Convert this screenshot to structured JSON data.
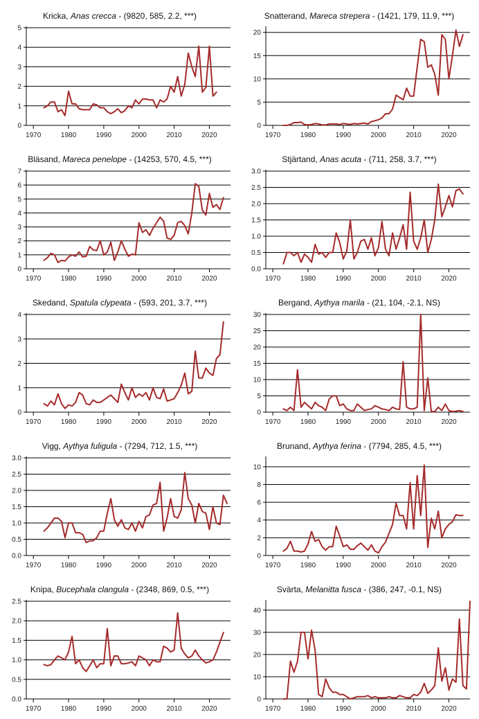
{
  "chart_data": [
    {
      "type": "line",
      "common_name": "Kricka",
      "latin_name": "Anas crecca",
      "stats": " - (9820, 585, 2.2, ***)",
      "x_start": 1973,
      "ylim": [
        0,
        5
      ],
      "yticks": [
        0,
        1,
        2,
        3,
        4,
        5
      ],
      "xticks": [
        1970,
        1980,
        1990,
        2000,
        2010,
        2020
      ],
      "xlim": [
        1968,
        2026
      ],
      "series": [
        {
          "values": [
            0.9,
            1.0,
            1.2,
            1.2,
            0.7,
            0.8,
            0.5,
            1.75,
            1.1,
            1.1,
            0.85,
            0.8,
            0.8,
            0.8,
            1.1,
            1.05,
            0.9,
            0.9,
            0.7,
            0.6,
            0.7,
            0.85,
            0.65,
            0.75,
            1.0,
            0.9,
            1.3,
            1.1,
            1.35,
            1.35,
            1.3,
            1.3,
            0.9,
            1.3,
            1.2,
            1.35,
            2.0,
            1.7,
            2.5,
            1.5,
            2.1,
            3.7,
            3.0,
            2.5,
            4.05,
            1.7,
            1.95,
            4.05,
            1.5,
            1.7
          ]
        }
      ]
    },
    {
      "type": "line",
      "common_name": "Snatterand",
      "latin_name": "Mareca strepera",
      "stats": " - (1421, 179, 11.9, ***)",
      "x_start": 1973,
      "ylim": [
        0,
        21
      ],
      "yticks": [
        0,
        5,
        10,
        15,
        20
      ],
      "xticks": [
        1970,
        1980,
        1990,
        2000,
        2010,
        2020
      ],
      "xlim": [
        1968,
        2026
      ],
      "series": [
        {
          "values": [
            0,
            0,
            0.2,
            0.6,
            0.6,
            0.7,
            0.2,
            0.1,
            0.2,
            0.4,
            0.3,
            0.1,
            0.1,
            0.3,
            0.3,
            0.3,
            0.2,
            0.4,
            0.3,
            0.2,
            0.4,
            0.3,
            0.4,
            0.5,
            0.3,
            0.8,
            1.0,
            1.2,
            1.6,
            2.5,
            2.5,
            3.5,
            6.5,
            6.0,
            5.5,
            8.0,
            6.3,
            6.3,
            12.5,
            18.5,
            18.0,
            12.5,
            13.0,
            11.0,
            6.5,
            19.5,
            18.5,
            10.0,
            15.0,
            20.5,
            17.0,
            19.5
          ]
        }
      ]
    },
    {
      "type": "line",
      "common_name": "Bläsand",
      "latin_name": "Mareca penelope",
      "stats": " - (14253, 570, 4.5, ***)",
      "x_start": 1973,
      "ylim": [
        0,
        7
      ],
      "yticks": [
        0,
        1,
        2,
        3,
        4,
        5,
        6,
        7
      ],
      "xticks": [
        1970,
        1980,
        1990,
        2000,
        2010,
        2020
      ],
      "xlim": [
        1968,
        2026
      ],
      "series": [
        {
          "values": [
            0.6,
            0.8,
            1.1,
            1.0,
            0.45,
            0.6,
            0.55,
            0.85,
            1.0,
            0.9,
            1.2,
            0.85,
            0.9,
            1.6,
            1.35,
            1.3,
            2.0,
            1.0,
            1.2,
            1.9,
            0.6,
            1.2,
            2.0,
            1.4,
            0.9,
            1.05,
            1.0,
            3.3,
            2.6,
            2.8,
            2.4,
            2.9,
            3.3,
            3.7,
            3.4,
            2.2,
            2.1,
            2.4,
            3.3,
            3.4,
            3.1,
            2.5,
            4.0,
            6.1,
            5.9,
            4.2,
            3.85,
            5.4,
            4.4,
            4.6,
            4.25,
            5.1
          ]
        }
      ]
    },
    {
      "type": "line",
      "common_name": "Stjärtand",
      "latin_name": "Anas acuta",
      "stats": " - (711, 258, 3.7, ***)",
      "x_start": 1973,
      "ylim": [
        0,
        3.0
      ],
      "yticks": [
        0,
        0.5,
        1.0,
        1.5,
        2.0,
        2.5,
        3.0
      ],
      "xticks": [
        1970,
        1980,
        1990,
        2000,
        2010,
        2020
      ],
      "xlim": [
        1968,
        2026
      ],
      "series": [
        {
          "values": [
            0.15,
            0.5,
            0.5,
            0.4,
            0.5,
            0.2,
            0.45,
            0.35,
            0.2,
            0.75,
            0.45,
            0.5,
            0.35,
            0.5,
            0.5,
            1.1,
            0.8,
            0.3,
            0.55,
            1.5,
            0.3,
            0.5,
            0.85,
            0.9,
            0.6,
            0.95,
            0.4,
            0.65,
            1.45,
            0.6,
            0.4,
            1.1,
            0.6,
            0.95,
            1.35,
            0.6,
            2.35,
            0.85,
            0.6,
            0.95,
            1.5,
            0.5,
            0.9,
            1.5,
            2.6,
            1.6,
            1.9,
            2.25,
            1.9,
            2.4,
            2.45,
            2.3
          ]
        }
      ]
    },
    {
      "type": "line",
      "common_name": "Skedand",
      "latin_name": "Spatula clypeata",
      "stats": " - (593, 201, 3.7, ***)",
      "x_start": 1973,
      "ylim": [
        0,
        4
      ],
      "yticks": [
        0,
        1,
        2,
        3,
        4
      ],
      "xticks": [
        1970,
        1980,
        1990,
        2000,
        2010,
        2020
      ],
      "xlim": [
        1968,
        2026
      ],
      "series": [
        {
          "values": [
            0.35,
            0.25,
            0.45,
            0.3,
            0.75,
            0.35,
            0.15,
            0.3,
            0.25,
            0.4,
            0.8,
            0.7,
            0.35,
            0.3,
            0.5,
            0.4,
            0.4,
            0.5,
            0.6,
            0.7,
            0.55,
            0.4,
            1.15,
            0.8,
            0.5,
            1.0,
            0.6,
            0.75,
            0.65,
            0.8,
            0.5,
            1.0,
            0.6,
            0.55,
            0.95,
            0.45,
            0.5,
            0.55,
            0.8,
            1.1,
            1.6,
            0.75,
            0.85,
            2.5,
            1.4,
            1.4,
            1.8,
            1.6,
            1.5,
            2.2,
            2.35,
            3.7
          ]
        }
      ]
    },
    {
      "type": "line",
      "common_name": "Bergand",
      "latin_name": "Aythya marila",
      "stats": " - (21, 104, -2.1, NS)",
      "x_start": 1973,
      "ylim": [
        0,
        30
      ],
      "yticks": [
        0,
        5,
        10,
        15,
        20,
        25,
        30
      ],
      "xticks": [
        1970,
        1980,
        1990,
        2000,
        2010,
        2020
      ],
      "xlim": [
        1968,
        2026
      ],
      "series": [
        {
          "values": [
            1.0,
            0.5,
            1.5,
            0.5,
            13.0,
            1.5,
            3.0,
            2.0,
            1.0,
            3.0,
            2.0,
            1.5,
            0.5,
            4.0,
            5.0,
            5.0,
            2.0,
            2.5,
            1.0,
            0.5,
            0.5,
            2.5,
            1.5,
            0.5,
            0.8,
            1.0,
            2.0,
            1.5,
            1.0,
            0.8,
            0.5,
            1.5,
            1.0,
            0.8,
            15.5,
            1.5,
            1.0,
            1.0,
            1.5,
            30.0,
            0.5,
            10.5,
            0.2,
            0.2,
            1.5,
            0.5,
            2.5,
            0.5,
            0.2,
            0.3,
            0.5,
            0.2
          ]
        }
      ]
    },
    {
      "type": "line",
      "common_name": "Vigg",
      "latin_name": "Aythya fuligula",
      "stats": " - (7294, 712, 1.5, ***)",
      "x_start": 1973,
      "ylim": [
        0,
        3.0
      ],
      "yticks": [
        0,
        0.5,
        1.0,
        1.5,
        2.0,
        2.5,
        3.0
      ],
      "xticks": [
        1970,
        1980,
        1990,
        2000,
        2010,
        2020
      ],
      "xlim": [
        1968,
        2026
      ],
      "series": [
        {
          "values": [
            0.75,
            0.85,
            1.0,
            1.15,
            1.15,
            1.05,
            0.55,
            1.0,
            1.0,
            0.7,
            0.7,
            0.65,
            0.4,
            0.45,
            0.45,
            0.55,
            0.75,
            0.75,
            1.3,
            1.75,
            1.1,
            0.9,
            1.1,
            0.85,
            0.8,
            1.0,
            0.75,
            1.05,
            0.85,
            1.2,
            1.25,
            1.55,
            1.6,
            2.25,
            0.75,
            1.15,
            1.75,
            1.2,
            1.15,
            1.4,
            2.55,
            1.75,
            1.55,
            1.0,
            1.6,
            1.35,
            1.3,
            0.8,
            1.5,
            1.0,
            0.95,
            1.85,
            1.6
          ]
        }
      ]
    },
    {
      "type": "line",
      "common_name": "Brunand",
      "latin_name": "Aythya ferina",
      "stats": " - (7794, 285, 4.5, ***)",
      "x_start": 1973,
      "ylim": [
        0,
        11
      ],
      "yticks": [
        0,
        2,
        4,
        6,
        8,
        10
      ],
      "xticks": [
        1970,
        1980,
        1990,
        2000,
        2010,
        2020
      ],
      "xlim": [
        1968,
        2026
      ],
      "series": [
        {
          "values": [
            0.5,
            0.8,
            1.6,
            0.5,
            0.5,
            0.4,
            0.5,
            1.3,
            2.7,
            1.6,
            1.8,
            1.0,
            0.6,
            1.0,
            1.0,
            3.3,
            2.2,
            1.0,
            1.2,
            0.7,
            0.7,
            1.1,
            1.4,
            1.0,
            0.6,
            1.2,
            0.5,
            0.3,
            1.0,
            1.5,
            2.5,
            3.5,
            5.9,
            4.5,
            4.5,
            3.0,
            8.2,
            3.0,
            9.0,
            4.5,
            10.2,
            0.9,
            4.2,
            3.0,
            5.0,
            2.0,
            3.0,
            3.5,
            3.8,
            4.6,
            4.5,
            4.5
          ]
        }
      ]
    },
    {
      "type": "line",
      "common_name": "Knipa",
      "latin_name": "Bucephala clangula",
      "stats": " - (2348, 869, 0.5, ***)",
      "x_start": 1973,
      "ylim": [
        0,
        2.5
      ],
      "yticks": [
        0,
        0.5,
        1.0,
        1.5,
        2.0,
        2.5
      ],
      "xticks": [
        1970,
        1980,
        1990,
        2000,
        2010,
        2020
      ],
      "xlim": [
        1968,
        2026
      ],
      "series": [
        {
          "values": [
            0.88,
            0.85,
            0.88,
            1.0,
            1.1,
            1.05,
            1.0,
            1.2,
            1.6,
            0.9,
            1.0,
            0.8,
            0.7,
            0.85,
            1.0,
            0.8,
            0.9,
            0.9,
            1.8,
            0.85,
            1.1,
            1.1,
            0.9,
            0.9,
            0.92,
            0.95,
            0.85,
            1.1,
            1.05,
            1.0,
            0.85,
            1.0,
            0.95,
            0.95,
            1.35,
            1.3,
            1.2,
            1.25,
            2.2,
            1.3,
            1.15,
            1.05,
            1.1,
            1.25,
            1.1,
            1.0,
            0.92,
            0.95,
            1.0,
            1.2,
            1.45,
            1.7
          ]
        }
      ]
    },
    {
      "type": "line",
      "common_name": "Svärta",
      "latin_name": "Melanitta fusca",
      "stats": " - (386, 247, -0.1, NS)",
      "x_start": 1973,
      "ylim": [
        0,
        44
      ],
      "yticks": [
        0,
        10,
        20,
        30,
        40
      ],
      "xticks": [
        1970,
        1980,
        1990,
        2000,
        2010,
        2020
      ],
      "xlim": [
        1968,
        2026
      ],
      "series": [
        {
          "values": [
            0,
            0,
            17,
            12,
            17,
            30,
            30,
            18,
            31,
            22,
            2,
            1,
            9,
            5,
            3,
            3,
            2,
            2,
            1,
            0,
            0.5,
            1,
            1,
            1,
            1.5,
            0.5,
            1,
            0.5,
            0.5,
            0.5,
            1,
            0.5,
            0.5,
            1.5,
            1,
            0.5,
            0.5,
            2,
            1.5,
            3,
            7,
            2.5,
            4,
            6,
            23,
            8,
            14,
            4,
            9,
            7.5,
            36,
            6,
            4.5,
            44
          ]
        }
      ]
    }
  ]
}
